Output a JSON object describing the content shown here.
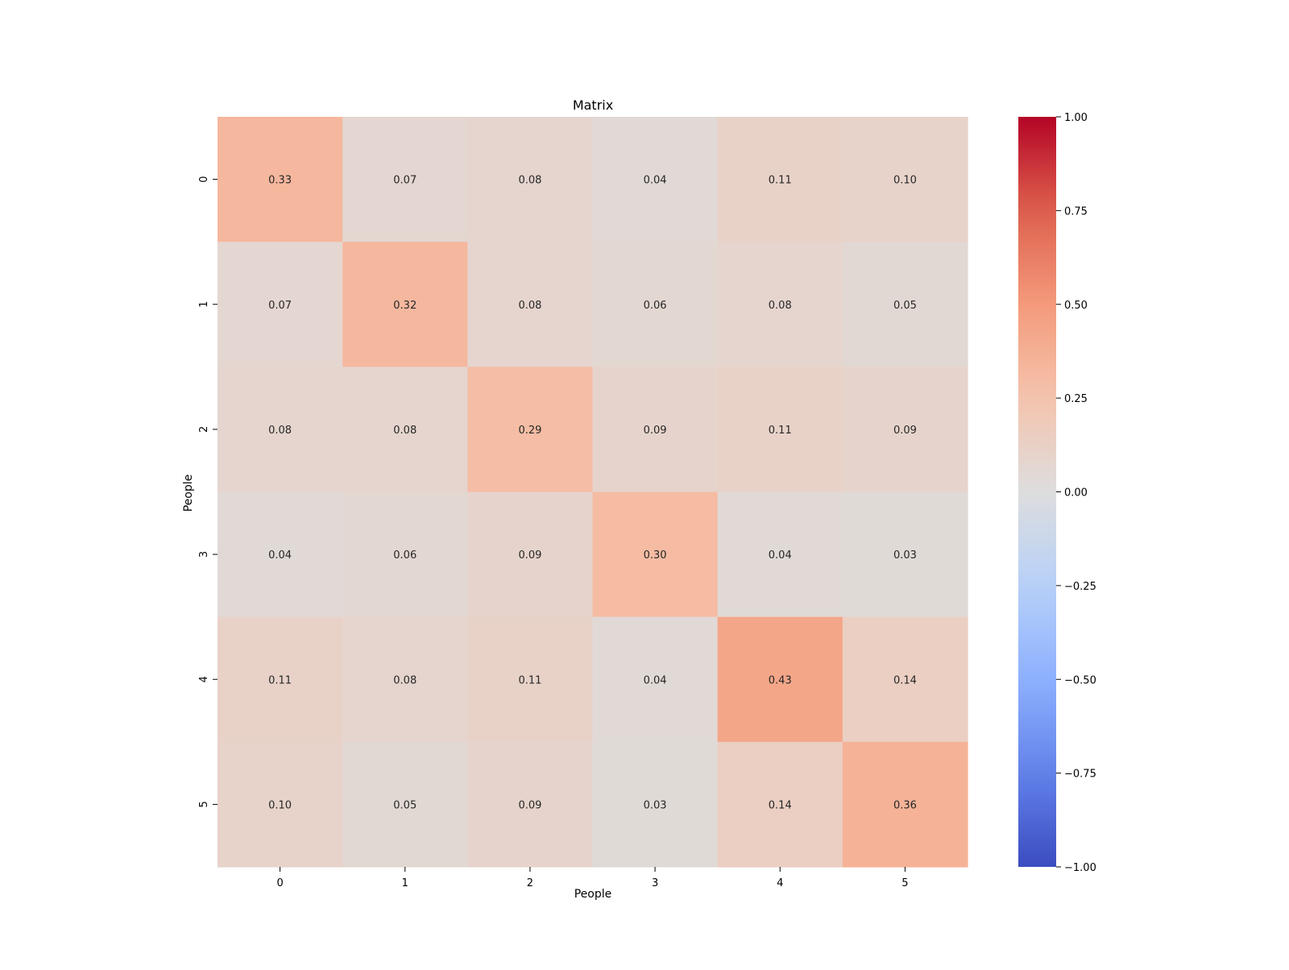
{
  "chart_data": {
    "type": "heatmap",
    "title": "Matrix",
    "xlabel": "People",
    "ylabel": "People",
    "x_categories": [
      "0",
      "1",
      "2",
      "3",
      "4",
      "5"
    ],
    "y_categories": [
      "0",
      "1",
      "2",
      "3",
      "4",
      "5"
    ],
    "values": [
      [
        0.33,
        0.07,
        0.08,
        0.04,
        0.11,
        0.1
      ],
      [
        0.07,
        0.32,
        0.08,
        0.06,
        0.08,
        0.05
      ],
      [
        0.08,
        0.08,
        0.29,
        0.09,
        0.11,
        0.09
      ],
      [
        0.04,
        0.06,
        0.09,
        0.3,
        0.04,
        0.03
      ],
      [
        0.11,
        0.08,
        0.11,
        0.04,
        0.43,
        0.14
      ],
      [
        0.1,
        0.05,
        0.09,
        0.03,
        0.14,
        0.36
      ]
    ],
    "value_format": "0.00",
    "colormap": "coolwarm",
    "vmin": -1.0,
    "vmax": 1.0,
    "colorbar": {
      "ticks": [
        1.0,
        0.75,
        0.5,
        0.25,
        0.0,
        -0.25,
        -0.5,
        -0.75,
        -1.0
      ],
      "tick_labels": [
        "1.00",
        "0.75",
        "0.50",
        "0.25",
        "0.00",
        "−0.25",
        "−0.50",
        "−0.75",
        "−1.00"
      ],
      "placement": "right"
    },
    "grid": false
  }
}
